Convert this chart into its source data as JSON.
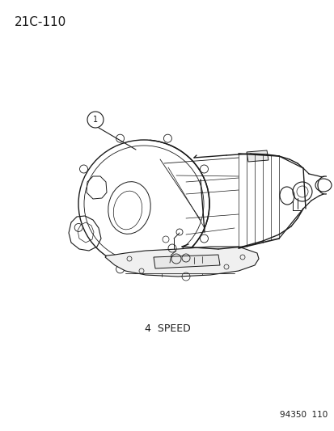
{
  "page_ref": "21C-110",
  "caption": "4  SPEED",
  "part_number": "94350  110",
  "bg_color": "#ffffff",
  "line_color": "#1a1a1a",
  "page_ref_fontsize": 11,
  "caption_fontsize": 9,
  "part_number_fontsize": 7.5,
  "callout_number": "1",
  "fig_width": 4.14,
  "fig_height": 5.33,
  "dpi": 100
}
